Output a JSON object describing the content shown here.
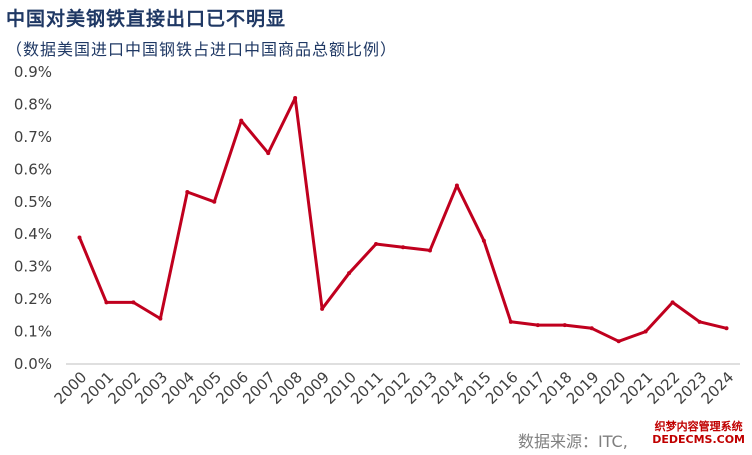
{
  "header": {
    "title": "中国对美钢铁直接出口已不明显",
    "subtitle": "（数据美国进口中国钢铁占进口中国商品总额比例）"
  },
  "source": "数据来源：ITC,",
  "watermark": {
    "line1": "织梦内容管理系统",
    "line2": "DEDECMS.COM"
  },
  "colors": {
    "line": "#c0001e",
    "title": "#1f3864"
  },
  "chart_data": {
    "type": "line",
    "title": "中国对美钢铁直接出口已不明显",
    "subtitle": "（数据美国进口中国钢铁占进口中国商品总额比例）",
    "categories": [
      "2000",
      "2001",
      "2002",
      "2003",
      "2004",
      "2005",
      "2006",
      "2007",
      "2008",
      "2009",
      "2010",
      "2011",
      "2012",
      "2013",
      "2014",
      "2015",
      "2016",
      "2017",
      "2018",
      "2019",
      "2020",
      "2021",
      "2022",
      "2023",
      "2024"
    ],
    "values": [
      0.39,
      0.19,
      0.19,
      0.14,
      0.53,
      0.5,
      0.75,
      0.65,
      0.82,
      0.17,
      0.28,
      0.37,
      0.36,
      0.35,
      0.55,
      0.38,
      0.13,
      0.12,
      0.12,
      0.11,
      0.07,
      0.1,
      0.19,
      0.13,
      0.11
    ],
    "ylim": [
      0,
      0.9
    ],
    "yticks": [
      "0.0%",
      "0.1%",
      "0.2%",
      "0.3%",
      "0.4%",
      "0.5%",
      "0.6%",
      "0.7%",
      "0.8%",
      "0.9%"
    ],
    "xlabel": "",
    "ylabel": "",
    "grid": false,
    "legend": "none"
  }
}
